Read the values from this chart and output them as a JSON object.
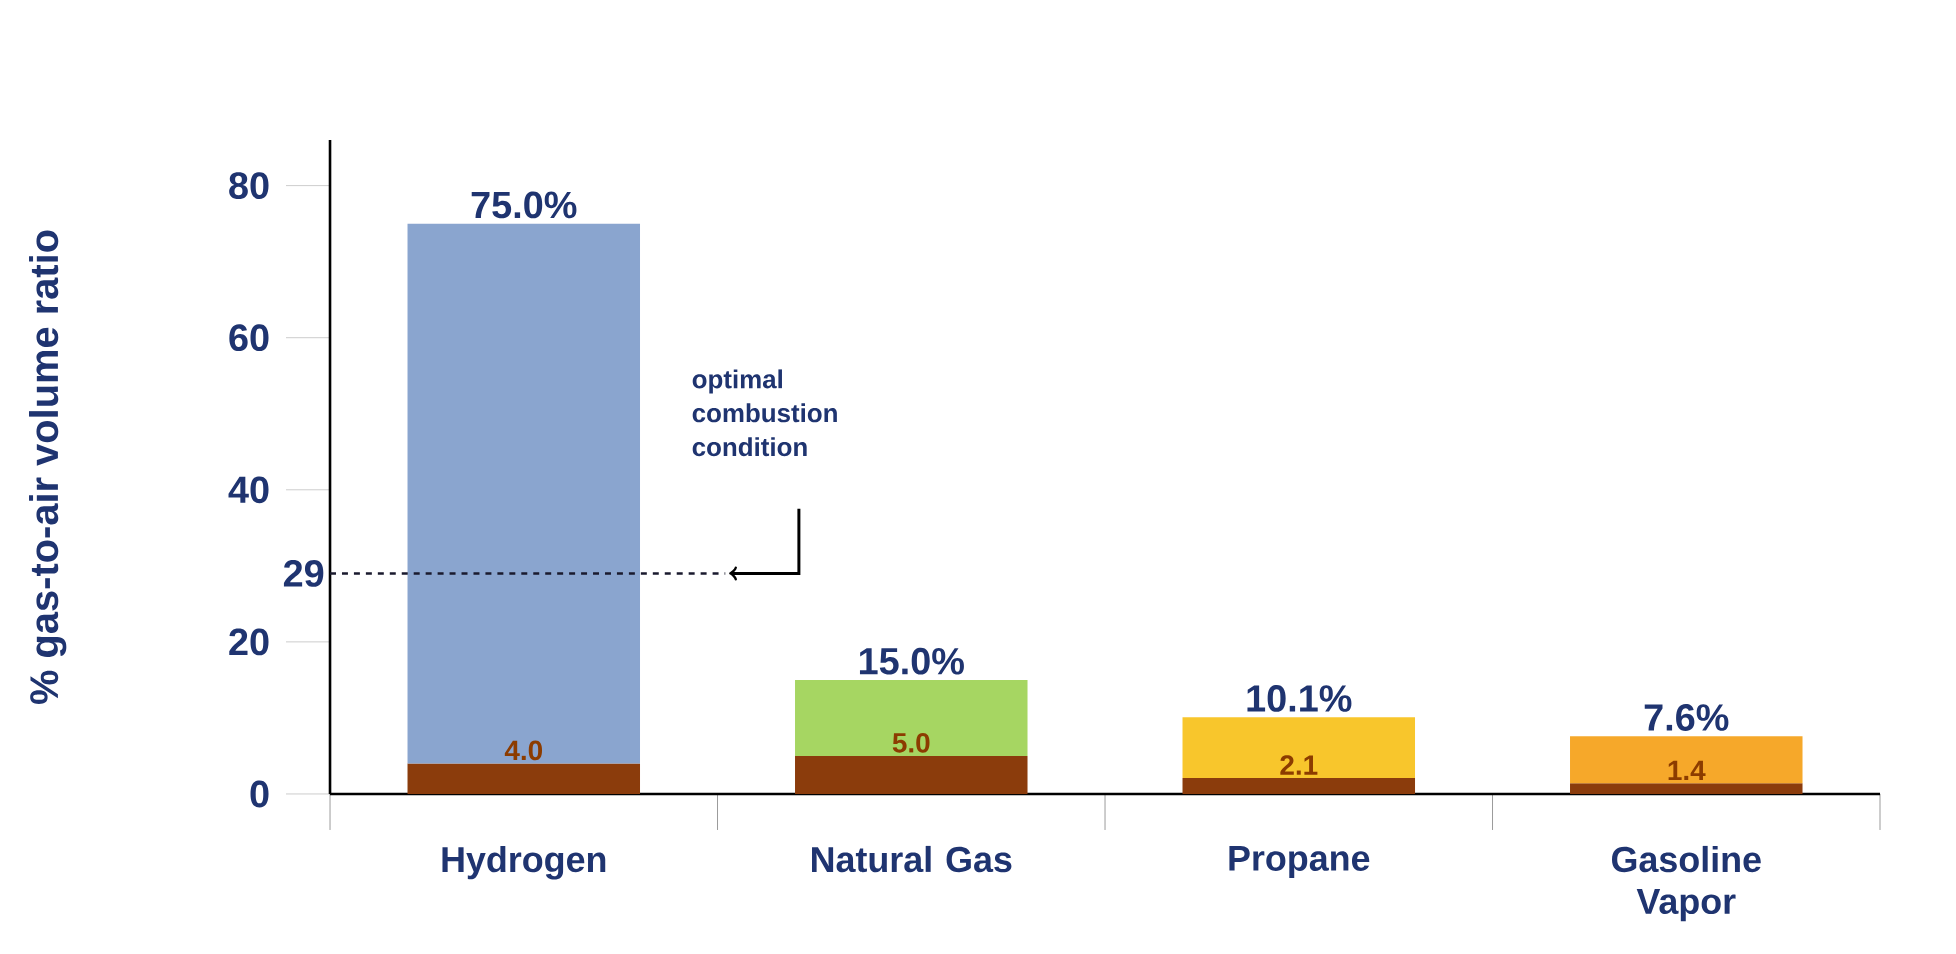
{
  "chart_data": {
    "type": "bar",
    "stacked": true,
    "ylabel": "% gas-to-air volume ratio",
    "categories": [
      "Hydrogen",
      "Natural Gas",
      "Propane",
      "Gasoline Vapor"
    ],
    "series": [
      {
        "color": "#8b3c0c",
        "values": [
          4.0,
          5.0,
          2.1,
          1.4
        ],
        "value_labels": [
          "4.0",
          "5.0",
          "2.1",
          "1.4"
        ]
      },
      {
        "colors": [
          "#8aa5cf",
          "#a6d662",
          "#f8c62c",
          "#f6a82a"
        ],
        "values": [
          71.0,
          10.0,
          8.0,
          6.2
        ]
      }
    ],
    "totals": [
      "75.0%",
      "15.0%",
      "10.1%",
      "7.6%"
    ],
    "ylim": [
      0,
      86
    ],
    "yticks": [
      0,
      20,
      40,
      60,
      80
    ],
    "ref_lines": [
      {
        "axis": "y",
        "value": 29,
        "label": "29",
        "line_style": "dashed",
        "color": "#1a1a2e"
      }
    ],
    "annotations": [
      "optimal combustion condition"
    ],
    "grid": false
  }
}
